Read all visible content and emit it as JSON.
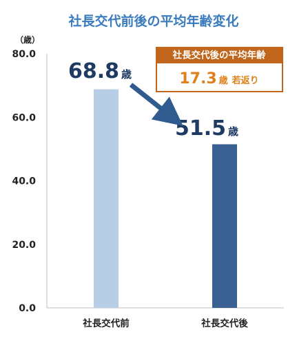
{
  "chart_data": {
    "type": "bar",
    "title": "社長交代前後の平均年齢変化",
    "unit_label": "（歳）",
    "categories": [
      "社長交代前",
      "社長交代後"
    ],
    "values": [
      68.8,
      51.5
    ],
    "value_labels": [
      "68.8",
      "51.5"
    ],
    "value_unit": "歳",
    "bar_colors": [
      "#b8cde6",
      "#3b6192"
    ],
    "ylim": [
      0,
      80
    ],
    "yticks": [
      "0.0",
      "20.0",
      "40.0",
      "60.0",
      "80.0"
    ],
    "grid": false,
    "annotation": {
      "header": "社長交代後の平均年齢",
      "value": "17.3",
      "unit": "歳",
      "suffix": "若返り",
      "header_color": "#c0651a",
      "value_color": "#e0801a"
    },
    "arrow_color": "#2f5b8e"
  }
}
